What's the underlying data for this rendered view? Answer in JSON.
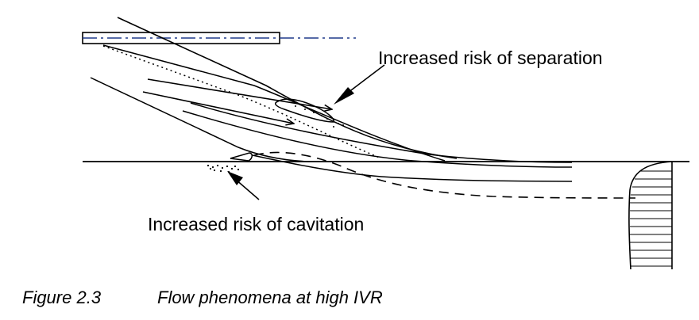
{
  "diagram": {
    "annotations": {
      "separation": "Increased risk of separation",
      "cavitation": "Increased risk of cavitation"
    }
  },
  "caption": {
    "number": "Figure 2.3",
    "text": "Flow phenomena at high IVR"
  },
  "colors": {
    "line": "#000000",
    "centerline": "#1f3a8a",
    "background": "#ffffff"
  }
}
